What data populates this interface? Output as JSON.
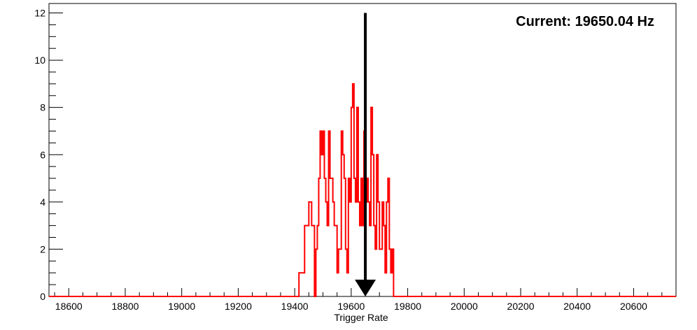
{
  "chart_data": {
    "type": "histogram",
    "title": "",
    "xlabel": "Trigger Rate",
    "ylabel": "",
    "xlim": [
      18530,
      20750
    ],
    "ylim": [
      0,
      12.4
    ],
    "x_ticks": [
      18600,
      18800,
      19000,
      19200,
      19400,
      19600,
      19800,
      20000,
      20200,
      20400,
      20600
    ],
    "y_ticks": [
      0,
      2,
      4,
      6,
      8,
      10,
      12
    ],
    "x_tick_labels": [
      "18600",
      "18800",
      "19000",
      "19200",
      "19400",
      "19600",
      "19800",
      "20000",
      "20200",
      "20400",
      "20600"
    ],
    "y_tick_labels": [
      "0",
      "2",
      "4",
      "6",
      "8",
      "10",
      "12"
    ],
    "grid": false,
    "line_color": "#ff0000",
    "bin_width": 5,
    "series": [
      {
        "values": [
          [
            19415,
            1
          ],
          [
            19420,
            1
          ],
          [
            19425,
            1
          ],
          [
            19430,
            1
          ],
          [
            19435,
            3
          ],
          [
            19440,
            3
          ],
          [
            19445,
            3
          ],
          [
            19450,
            4
          ],
          [
            19455,
            4
          ],
          [
            19460,
            3
          ],
          [
            19465,
            3
          ],
          [
            19475,
            2
          ],
          [
            19480,
            3
          ],
          [
            19485,
            5
          ],
          [
            19490,
            7
          ],
          [
            19495,
            6
          ],
          [
            19500,
            7
          ],
          [
            19505,
            5
          ],
          [
            19510,
            4
          ],
          [
            19515,
            3
          ],
          [
            19520,
            7
          ],
          [
            19525,
            5
          ],
          [
            19530,
            5
          ],
          [
            19535,
            4
          ],
          [
            19540,
            3
          ],
          [
            19545,
            3
          ],
          [
            19550,
            1
          ],
          [
            19555,
            2
          ],
          [
            19560,
            2
          ],
          [
            19565,
            7
          ],
          [
            19570,
            6
          ],
          [
            19575,
            5
          ],
          [
            19580,
            2
          ],
          [
            19585,
            1
          ],
          [
            19590,
            5
          ],
          [
            19595,
            4
          ],
          [
            19600,
            8
          ],
          [
            19605,
            9
          ],
          [
            19610,
            5
          ],
          [
            19615,
            4
          ],
          [
            19620,
            8
          ],
          [
            19625,
            4
          ],
          [
            19630,
            3
          ],
          [
            19635,
            5
          ],
          [
            19640,
            3
          ],
          [
            19645,
            7
          ],
          [
            19650,
            4
          ],
          [
            19655,
            5
          ],
          [
            19660,
            4
          ],
          [
            19665,
            3
          ],
          [
            19670,
            8
          ],
          [
            19675,
            6
          ],
          [
            19680,
            3
          ],
          [
            19685,
            2
          ],
          [
            19690,
            6
          ],
          [
            19695,
            4
          ],
          [
            19700,
            2
          ],
          [
            19705,
            2
          ],
          [
            19710,
            4
          ],
          [
            19715,
            3
          ],
          [
            19720,
            1
          ],
          [
            19725,
            4
          ],
          [
            19730,
            5
          ],
          [
            19735,
            2
          ],
          [
            19740,
            1
          ],
          [
            19745,
            2
          ]
        ]
      }
    ],
    "marker": {
      "x": 19650.04,
      "y_top": 12,
      "y_bottom": 0
    },
    "annotation": "Current: 19650.04 Hz",
    "annotation_position": "top-right"
  }
}
